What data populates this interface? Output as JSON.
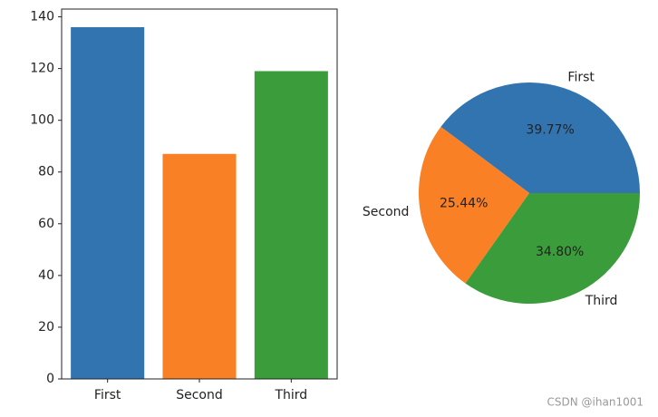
{
  "chart_data": [
    {
      "type": "bar",
      "categories": [
        "First",
        "Second",
        "Third"
      ],
      "values": [
        136,
        87,
        119
      ],
      "colors": [
        "#3274b0",
        "#f98024",
        "#3a9c3a"
      ],
      "ylim": [
        0,
        143
      ],
      "yticks": [
        0,
        20,
        40,
        60,
        80,
        100,
        120,
        140
      ]
    },
    {
      "type": "pie",
      "categories": [
        "First",
        "Second",
        "Third"
      ],
      "values": [
        39.77,
        25.44,
        34.8
      ],
      "value_labels": [
        "39.77%",
        "25.44%",
        "34.80%"
      ],
      "colors": [
        "#3274b0",
        "#f98024",
        "#3a9c3a"
      ]
    }
  ],
  "watermark": "CSDN @ihan1001"
}
